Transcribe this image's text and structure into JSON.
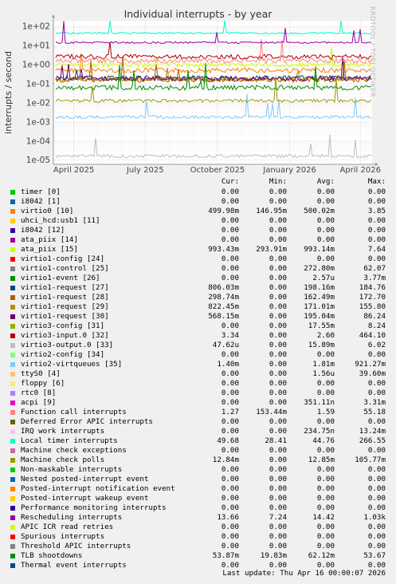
{
  "chart_data": {
    "type": "line",
    "title": "Individual interrupts - by year",
    "ylabel": "interrupts / second",
    "yscale": "log",
    "ylim": [
      6e-06,
      200
    ],
    "yticks": [
      "1e-05",
      "1e-04",
      "1e-03",
      "1e-02",
      "1e-01",
      "1e+00",
      "1e+01",
      "1e+02"
    ],
    "xlim": [
      "2025-03-06",
      "2026-04-16"
    ],
    "xticks": [
      {
        "date": "2025-04-01",
        "label": "April 2025"
      },
      {
        "date": "2025-07-01",
        "label": "July 2025"
      },
      {
        "date": "2025-10-01",
        "label": "October 2025"
      },
      {
        "date": "2026-01-01",
        "label": "January 2026"
      },
      {
        "date": "2026-04-01",
        "label": "April 2026"
      }
    ],
    "grid": true,
    "series": [
      {
        "name": "timer [0]",
        "color": "#00cc00",
        "level": null
      },
      {
        "name": "i8042 [1]",
        "color": "#0066b3",
        "level": null
      },
      {
        "name": "virtio0 [10]",
        "color": "#ff8000",
        "level": 0.5
      },
      {
        "name": "uhci_hcd:usb1 [11]",
        "color": "#ffcc00",
        "level": null
      },
      {
        "name": "i8042 [12]",
        "color": "#330099",
        "level": null
      },
      {
        "name": "ata_piix [14]",
        "color": "#990099",
        "level": null
      },
      {
        "name": "ata_piix [15]",
        "color": "#ccff00",
        "level": 0.99
      },
      {
        "name": "virtio1-config [24]",
        "color": "#ff0000",
        "level": null
      },
      {
        "name": "virtio1-control [25]",
        "color": "#808080",
        "level": null
      },
      {
        "name": "virtio1-event [26]",
        "color": "#008f00",
        "level": null
      },
      {
        "name": "virtio1-request [27]",
        "color": "#00487d",
        "level": 0.2
      },
      {
        "name": "virtio1-request [28]",
        "color": "#b35a00",
        "level": 0.16
      },
      {
        "name": "virtio1-request [29]",
        "color": "#b38f00",
        "level": 0.17
      },
      {
        "name": "virtio1-request [30]",
        "color": "#6b006b",
        "level": 0.19
      },
      {
        "name": "virtio3-config [31]",
        "color": "#8fb300",
        "level": null
      },
      {
        "name": "virtio3-input.0 [32]",
        "color": "#b30000",
        "level": 2.6
      },
      {
        "name": "virtio3-output.0 [33]",
        "color": "#bebebe",
        "level": 1.6e-05
      },
      {
        "name": "virtio2-config [34]",
        "color": "#80ff80",
        "level": null
      },
      {
        "name": "virtio2-virtqueues [35]",
        "color": "#80c9ff",
        "level": 0.0018
      },
      {
        "name": "ttyS0 [4]",
        "color": "#ffc080",
        "level": null
      },
      {
        "name": "floppy [6]",
        "color": "#ffe680",
        "level": null
      },
      {
        "name": "rtc0 [8]",
        "color": "#aa80ff",
        "level": null
      },
      {
        "name": "acpi [9]",
        "color": "#ee00cc",
        "level": null
      },
      {
        "name": "Function call interrupts",
        "color": "#ff8080",
        "level": 1.59
      },
      {
        "name": "Deferred Error APIC interrupts",
        "color": "#666600",
        "level": null
      },
      {
        "name": "IRQ work interrupts",
        "color": "#ffbfff",
        "level": null
      },
      {
        "name": "Local timer interrupts",
        "color": "#00ffcc",
        "level": 44.76
      },
      {
        "name": "Machine check exceptions",
        "color": "#cc6699",
        "level": null
      },
      {
        "name": "Machine check polls",
        "color": "#999900",
        "level": 0.01285
      },
      {
        "name": "Non-maskable interrupts",
        "color": "#00cc00",
        "level": null
      },
      {
        "name": "Nested posted-interrupt event",
        "color": "#0066b3",
        "level": null
      },
      {
        "name": "Posted-interrupt notification event",
        "color": "#ff8000",
        "level": null
      },
      {
        "name": "Posted-interrupt wakeup event",
        "color": "#ffcc00",
        "level": null
      },
      {
        "name": "Performance monitoring interrupts",
        "color": "#330099",
        "level": null
      },
      {
        "name": "Rescheduling interrupts",
        "color": "#990099",
        "level": 14.42
      },
      {
        "name": "APIC ICR read retries",
        "color": "#ccff00",
        "level": null
      },
      {
        "name": "Spurious interrupts",
        "color": "#ff0000",
        "level": null
      },
      {
        "name": "Threshold APIC interrupts",
        "color": "#808080",
        "level": null
      },
      {
        "name": "TLB shootdowns",
        "color": "#008f00",
        "level": 0.062
      },
      {
        "name": "Thermal event interrupts",
        "color": "#00487d",
        "level": null
      }
    ]
  },
  "side_label": "RRDTOOL / TOBI OETIKER",
  "legend": {
    "headers": [
      "Cur:",
      "Min:",
      "Avg:",
      "Max:"
    ],
    "rows": [
      {
        "cur": "0.00",
        "min": "0.00",
        "avg": "0.00",
        "max": "0.00"
      },
      {
        "cur": "0.00",
        "min": "0.00",
        "avg": "0.00",
        "max": "0.00"
      },
      {
        "cur": "499.98m",
        "min": "146.95m",
        "avg": "500.02m",
        "max": "3.85"
      },
      {
        "cur": "0.00",
        "min": "0.00",
        "avg": "0.00",
        "max": "0.00"
      },
      {
        "cur": "0.00",
        "min": "0.00",
        "avg": "0.00",
        "max": "0.00"
      },
      {
        "cur": "0.00",
        "min": "0.00",
        "avg": "0.00",
        "max": "0.00"
      },
      {
        "cur": "993.43m",
        "min": "293.91m",
        "avg": "993.14m",
        "max": "7.64"
      },
      {
        "cur": "0.00",
        "min": "0.00",
        "avg": "0.00",
        "max": "0.00"
      },
      {
        "cur": "0.00",
        "min": "0.00",
        "avg": "272.80m",
        "max": "62.07"
      },
      {
        "cur": "0.00",
        "min": "0.00",
        "avg": "2.57u",
        "max": "3.77m"
      },
      {
        "cur": "806.03m",
        "min": "0.00",
        "avg": "198.16m",
        "max": "184.76"
      },
      {
        "cur": "298.74m",
        "min": "0.00",
        "avg": "162.49m",
        "max": "172.70"
      },
      {
        "cur": "822.45m",
        "min": "0.00",
        "avg": "171.01m",
        "max": "155.80"
      },
      {
        "cur": "568.15m",
        "min": "0.00",
        "avg": "195.04m",
        "max": "86.24"
      },
      {
        "cur": "0.00",
        "min": "0.00",
        "avg": "17.55m",
        "max": "8.24"
      },
      {
        "cur": "3.34",
        "min": "0.00",
        "avg": "2.60",
        "max": "464.10"
      },
      {
        "cur": "47.62u",
        "min": "0.00",
        "avg": "15.89m",
        "max": "6.02"
      },
      {
        "cur": "0.00",
        "min": "0.00",
        "avg": "0.00",
        "max": "0.00"
      },
      {
        "cur": "1.40m",
        "min": "0.00",
        "avg": "1.81m",
        "max": "921.27m"
      },
      {
        "cur": "0.00",
        "min": "0.00",
        "avg": "1.56u",
        "max": "39.60m"
      },
      {
        "cur": "0.00",
        "min": "0.00",
        "avg": "0.00",
        "max": "0.00"
      },
      {
        "cur": "0.00",
        "min": "0.00",
        "avg": "0.00",
        "max": "0.00"
      },
      {
        "cur": "0.00",
        "min": "0.00",
        "avg": "351.11n",
        "max": "3.31m"
      },
      {
        "cur": "1.27",
        "min": "153.44m",
        "avg": "1.59",
        "max": "55.18"
      },
      {
        "cur": "0.00",
        "min": "0.00",
        "avg": "0.00",
        "max": "0.00"
      },
      {
        "cur": "0.00",
        "min": "0.00",
        "avg": "234.75n",
        "max": "13.24m"
      },
      {
        "cur": "49.68",
        "min": "28.41",
        "avg": "44.76",
        "max": "266.55"
      },
      {
        "cur": "0.00",
        "min": "0.00",
        "avg": "0.00",
        "max": "0.00"
      },
      {
        "cur": "12.84m",
        "min": "0.00",
        "avg": "12.85m",
        "max": "105.77m"
      },
      {
        "cur": "0.00",
        "min": "0.00",
        "avg": "0.00",
        "max": "0.00"
      },
      {
        "cur": "0.00",
        "min": "0.00",
        "avg": "0.00",
        "max": "0.00"
      },
      {
        "cur": "0.00",
        "min": "0.00",
        "avg": "0.00",
        "max": "0.00"
      },
      {
        "cur": "0.00",
        "min": "0.00",
        "avg": "0.00",
        "max": "0.00"
      },
      {
        "cur": "0.00",
        "min": "0.00",
        "avg": "0.00",
        "max": "0.00"
      },
      {
        "cur": "13.66",
        "min": "7.24",
        "avg": "14.42",
        "max": "1.03k"
      },
      {
        "cur": "0.00",
        "min": "0.00",
        "avg": "0.00",
        "max": "0.00"
      },
      {
        "cur": "0.00",
        "min": "0.00",
        "avg": "0.00",
        "max": "0.00"
      },
      {
        "cur": "0.00",
        "min": "0.00",
        "avg": "0.00",
        "max": "0.00"
      },
      {
        "cur": "53.87m",
        "min": "19.83m",
        "avg": "62.12m",
        "max": "53.67"
      },
      {
        "cur": "0.00",
        "min": "0.00",
        "avg": "0.00",
        "max": "0.00"
      }
    ]
  },
  "footer": "Last update: Thu Apr 16 00:00:07 2026"
}
